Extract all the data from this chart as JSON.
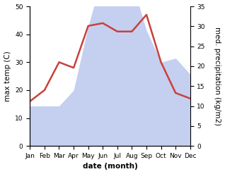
{
  "months": [
    "Jan",
    "Feb",
    "Mar",
    "Apr",
    "May",
    "Jun",
    "Jul",
    "Aug",
    "Sep",
    "Oct",
    "Nov",
    "Dec"
  ],
  "max_temp": [
    16,
    20,
    30,
    28,
    43,
    44,
    41,
    41,
    47,
    30,
    19,
    17
  ],
  "precipitation": [
    10,
    10,
    10,
    14,
    30,
    43,
    41,
    41,
    29,
    21,
    22,
    18
  ],
  "temp_color": "#c8413a",
  "precip_color_fill": "#c5cff0",
  "temp_ylim": [
    0,
    50
  ],
  "precip_ylim": [
    0,
    35
  ],
  "temp_yticks": [
    0,
    10,
    20,
    30,
    40,
    50
  ],
  "precip_yticks": [
    0,
    5,
    10,
    15,
    20,
    25,
    30,
    35
  ],
  "xlabel": "date (month)",
  "ylabel_left": "max temp (C)",
  "ylabel_right": "med. precipitation (kg/m2)",
  "label_fontsize": 7.5,
  "tick_fontsize": 6.5,
  "bg_color": "#ffffff",
  "line_width": 1.8
}
